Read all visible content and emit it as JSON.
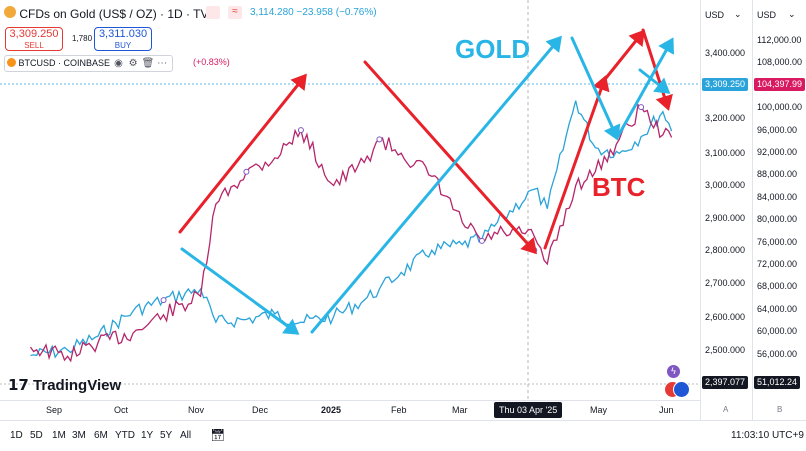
{
  "header": {
    "title": "CFDs on Gold (US$ / OZ) · 1D · TVC",
    "last_price": "3,114.280",
    "change": "−23.958 (−0.76%)",
    "sell_price": "3,309.250",
    "sell_label": "SELL",
    "spread": "1,780",
    "buy_price": "3,311.030",
    "buy_label": "BUY"
  },
  "second_series": {
    "label": "BTCUSD · COINBASE",
    "change": "(+0.83%)"
  },
  "annotations": {
    "gold_label": "GOLD",
    "btc_label": "BTC"
  },
  "scales": {
    "left_unit": "USD",
    "right_unit": "USD",
    "gold_ticks": [
      "3,400.000",
      "3,300.000",
      "3,200.000",
      "3,100.000",
      "3,000.000",
      "2,900.000",
      "2,800.000",
      "2,700.000",
      "2,600.000",
      "2,500.000"
    ],
    "btc_ticks": [
      "112,000.00",
      "108,000.00",
      "104,000.00",
      "100,000.00",
      "96,000.00",
      "92,000.00",
      "88,000.00",
      "84,000.00",
      "80,000.00",
      "76,000.00",
      "72,000.00",
      "68,000.00",
      "64,000.00",
      "60,000.00",
      "56,000.00"
    ],
    "gold_current": "3,309.250",
    "btc_current": "104,397.99",
    "gold_bottom": "2,397.077",
    "btc_bottom": "51,012.24",
    "left_axis_letter": "A",
    "right_axis_letter": "B"
  },
  "time_axis": {
    "labels": [
      "Sep",
      "Oct",
      "Nov",
      "Dec",
      "2025",
      "Feb",
      "Mar",
      "May",
      "Jun"
    ],
    "current": "Thu 03 Apr '25"
  },
  "branding": {
    "logo_text": "TradingView"
  },
  "toolbar": {
    "ranges": [
      "1D",
      "5D",
      "1M",
      "3M",
      "6M",
      "YTD",
      "1Y",
      "5Y",
      "All"
    ],
    "clock": "11:03:10 UTC+9"
  },
  "colors": {
    "gold_line": "#29a3d9",
    "btc_line": "#b5266a",
    "red_arrow": "#e8212a",
    "blue_arrow": "#29b6e6",
    "sell_red": "#e53935",
    "buy_blue": "#1e56d6",
    "gold_tag": "#29a3d9",
    "btc_tag": "#d81b60"
  },
  "chart_data": {
    "type": "line",
    "x": [
      "2024-08-15",
      "2024-09-01",
      "2024-09-15",
      "2024-10-01",
      "2024-10-15",
      "2024-11-01",
      "2024-11-08",
      "2024-11-22",
      "2024-12-05",
      "2024-12-17",
      "2025-01-01",
      "2025-01-15",
      "2025-01-22",
      "2025-02-01",
      "2025-02-15",
      "2025-03-01",
      "2025-03-10",
      "2025-03-20",
      "2025-04-03",
      "2025-04-09",
      "2025-04-22",
      "2025-05-01",
      "2025-05-12",
      "2025-05-22",
      "2025-06-01",
      "2025-06-05"
    ],
    "series": [
      {
        "name": "CFDs on Gold (US$ / OZ)",
        "axis": "left",
        "values": [
          2500,
          2520,
          2570,
          2660,
          2700,
          2740,
          2620,
          2630,
          2650,
          2620,
          2640,
          2700,
          2740,
          2800,
          2880,
          2900,
          2920,
          3000,
          3100,
          3030,
          3420,
          3250,
          3230,
          3290,
          3380,
          3310
        ]
      },
      {
        "name": "BTCUSD",
        "axis": "right",
        "values": [
          59000,
          57000,
          60000,
          62000,
          66000,
          70000,
          90000,
          97000,
          100000,
          106000,
          94000,
          99000,
          104000,
          101000,
          96000,
          86000,
          82000,
          84000,
          83000,
          77000,
          94000,
          97000,
          104000,
          111000,
          105000,
          104398
        ]
      }
    ],
    "left_axis": {
      "label": "USD",
      "range": [
        2397,
        3480
      ]
    },
    "right_axis": {
      "label": "USD",
      "range": [
        51000,
        116000
      ]
    },
    "annotations": [
      "GOLD",
      "BTC"
    ],
    "grid": false,
    "legend": "top-left"
  }
}
